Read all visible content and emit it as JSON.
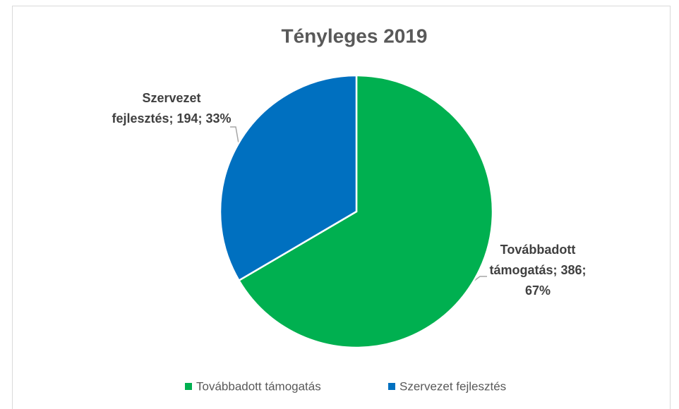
{
  "chart_data": {
    "type": "pie",
    "title": "Tényleges 2019",
    "categories": [
      "Továbbadott támogatás",
      "Szervezet fejlesztés"
    ],
    "values": [
      386,
      194
    ],
    "value_labels": [
      "Továbbadott támogatás; 386; 67%",
      "Szervezet fejlesztés; 194; 33%"
    ],
    "colors": [
      "#00b050",
      "#0070c0"
    ],
    "legend": "bottom"
  }
}
